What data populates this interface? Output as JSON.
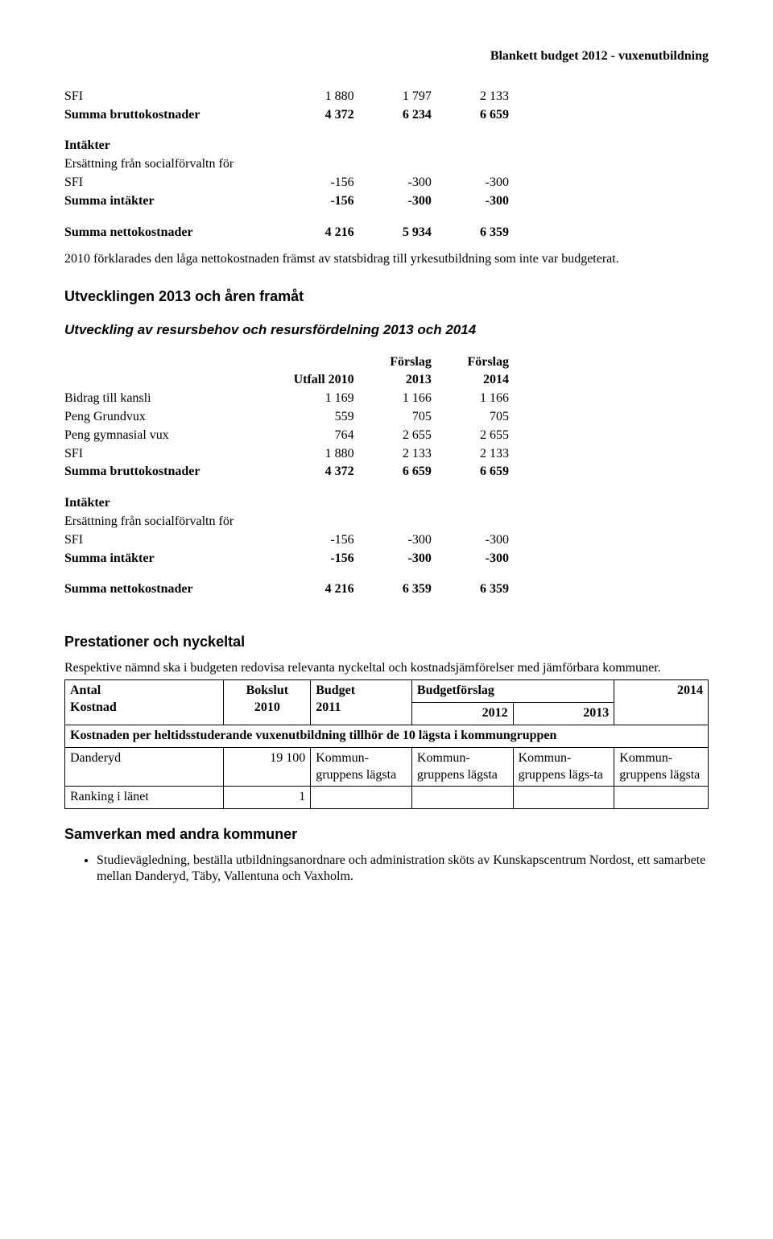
{
  "header_right": "Blankett budget 2012 - vuxenutbildning",
  "table1": {
    "rows": [
      {
        "label": "SFI",
        "v1": "1 880",
        "v2": "1 797",
        "v3": "2 133",
        "bold": false
      },
      {
        "label": "Summa bruttokostnader",
        "v1": "4 372",
        "v2": "6 234",
        "v3": "6 659",
        "bold": true
      }
    ],
    "section_intakter": "Intäkter",
    "rows2": [
      {
        "label": "Ersättning från socialförvaltn för",
        "v1": "",
        "v2": "",
        "v3": "",
        "bold": false
      },
      {
        "label": "SFI",
        "v1": "-156",
        "v2": "-300",
        "v3": "-300",
        "bold": false
      },
      {
        "label": "Summa intäkter",
        "v1": "-156",
        "v2": "-300",
        "v3": "-300",
        "bold": true
      }
    ],
    "rows3": [
      {
        "label": "Summa nettokostnader",
        "v1": "4 216",
        "v2": "5 934",
        "v3": "6 359",
        "bold": true
      }
    ]
  },
  "para1": "2010 förklarades den låga nettokostnaden främst av statsbidrag till yrkesutbildning som inte var budgeterat.",
  "h2_utv": "Utvecklingen 2013 och åren framåt",
  "h3_utv": "Utveckling av resursbehov och resursfördelning 2013 och 2014",
  "table2": {
    "head": {
      "c1": "Utfall 2010",
      "c2_top": "Förslag",
      "c2": "2013",
      "c3_top": "Förslag",
      "c3": "2014"
    },
    "rows": [
      {
        "label": "Bidrag till kansli",
        "v1": "1 169",
        "v2": "1 166",
        "v3": "1 166",
        "bold": false
      },
      {
        "label": "Peng Grundvux",
        "v1": "559",
        "v2": "705",
        "v3": "705",
        "bold": false
      },
      {
        "label": "Peng gymnasial vux",
        "v1": "764",
        "v2": "2 655",
        "v3": "2 655",
        "bold": false
      },
      {
        "label": "SFI",
        "v1": "1 880",
        "v2": "2 133",
        "v3": "2 133",
        "bold": false
      },
      {
        "label": "Summa bruttokostnader",
        "v1": "4 372",
        "v2": "6 659",
        "v3": "6 659",
        "bold": true
      }
    ],
    "section_intakter": "Intäkter",
    "rows2": [
      {
        "label": "Ersättning från socialförvaltn för",
        "v1": "",
        "v2": "",
        "v3": "",
        "bold": false
      },
      {
        "label": "SFI",
        "v1": "-156",
        "v2": "-300",
        "v3": "-300",
        "bold": false
      },
      {
        "label": "Summa intäkter",
        "v1": "-156",
        "v2": "-300",
        "v3": "-300",
        "bold": true
      }
    ],
    "rows3": [
      {
        "label": "Summa nettokostnader",
        "v1": "4 216",
        "v2": "6 359",
        "v3": "6 359",
        "bold": true
      }
    ]
  },
  "h2_prest": "Prestationer och nyckeltal",
  "para2": "Respektive nämnd ska i budgeten redovisa relevanta nyckeltal och kostnadsjämförelser med jämförbara kommuner.",
  "table3": {
    "head": {
      "c1a": "Antal",
      "c1b": "Kostnad",
      "c2a": "Bokslut",
      "c2b": "2010",
      "c3a": "Budget",
      "c3b": "2011",
      "c4": "Budgetförslag",
      "c4a": "2012",
      "c4b": "2013",
      "c4c": "2014"
    },
    "row_span": "Kostnaden per heltidsstuderande vuxenutbildning tillhör de 10 lägsta i kommungruppen",
    "row_d": {
      "label": "Danderyd",
      "v1": "19 100",
      "v2": "Kommun-gruppens lägsta",
      "v3": "Kommun-gruppens lägsta",
      "v4": "Kommun-gruppens lägs-ta",
      "v5": "Kommun-gruppens lägsta"
    },
    "row_r": {
      "label": "Ranking i länet",
      "v1": "1"
    }
  },
  "h2_samv": "Samverkan med andra kommuner",
  "bullet1": "Studievägledning, beställa utbildningsanordnare och administration sköts av Kunskapscentrum Nordost, ett samarbete mellan Danderyd, Täby, Vallentuna och Vaxholm."
}
